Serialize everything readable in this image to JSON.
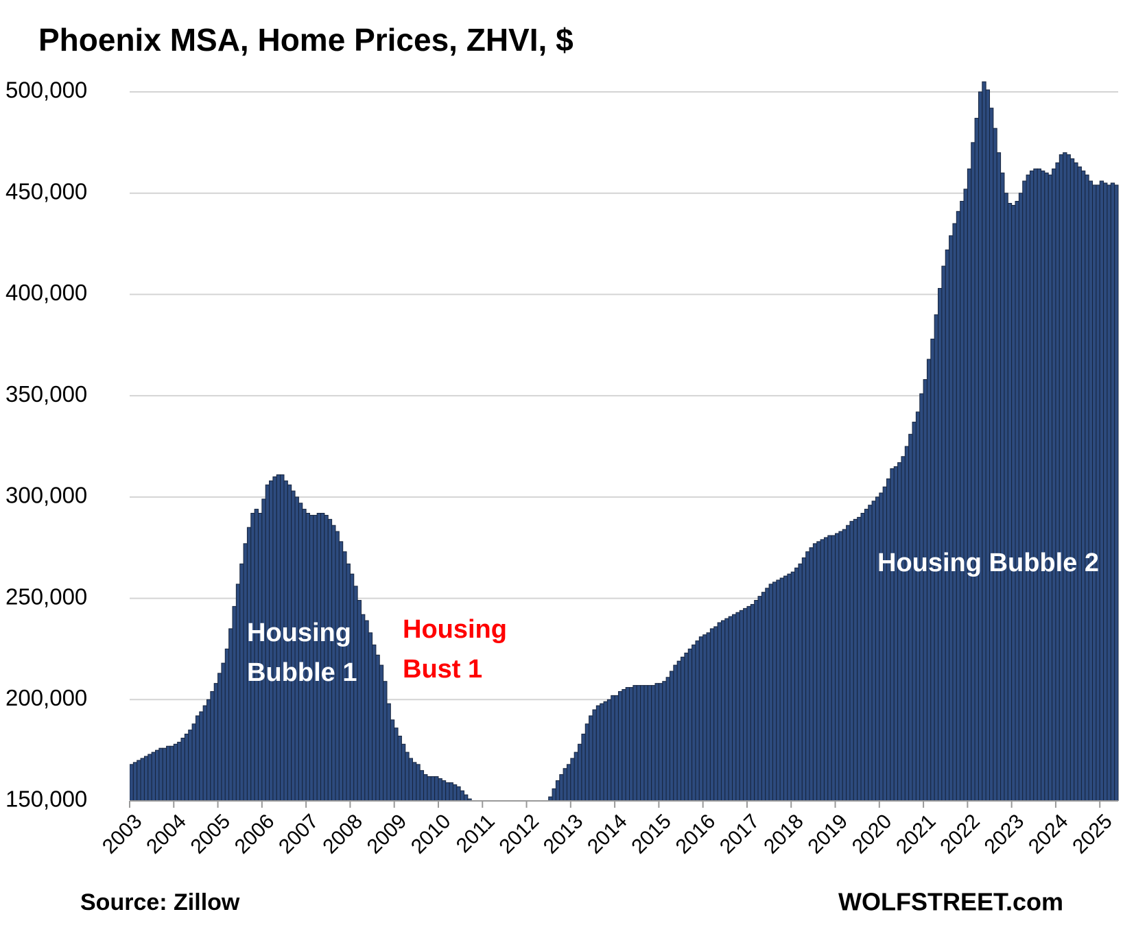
{
  "chart_data": {
    "type": "bar",
    "title": "Phoenix  MSA, Home Prices, ZHVI, $",
    "source": "Source: Zillow",
    "credit": "WOLFSTREET.com",
    "color": "#2d4b7e",
    "grid": true,
    "ylim": [
      150000,
      500000
    ],
    "yticks": [
      {
        "value": 150000,
        "label": "150,000"
      },
      {
        "value": 200000,
        "label": "200,000"
      },
      {
        "value": 250000,
        "label": "250,000"
      },
      {
        "value": 300000,
        "label": "300,000"
      },
      {
        "value": 350000,
        "label": "350,000"
      },
      {
        "value": 400000,
        "label": "400,000"
      },
      {
        "value": 450000,
        "label": "450,000"
      },
      {
        "value": 500000,
        "label": "500,000"
      }
    ],
    "annotations": [
      {
        "lines": [
          "Housing",
          "Bubble 1"
        ],
        "color": "#ffffff"
      },
      {
        "lines": [
          "Housing",
          "Bust 1"
        ],
        "color": "#ff0000"
      },
      {
        "lines": [
          "Housing Bubble 2"
        ],
        "color": "#ffffff"
      }
    ],
    "categories": [
      "2003",
      null,
      null,
      null,
      null,
      null,
      null,
      null,
      null,
      null,
      null,
      null,
      "2004",
      null,
      null,
      null,
      null,
      null,
      null,
      null,
      null,
      null,
      null,
      null,
      "2005",
      null,
      null,
      null,
      null,
      null,
      null,
      null,
      null,
      null,
      null,
      null,
      "2006",
      null,
      null,
      null,
      null,
      null,
      null,
      null,
      null,
      null,
      null,
      null,
      "2007",
      null,
      null,
      null,
      null,
      null,
      null,
      null,
      null,
      null,
      null,
      null,
      "2008",
      null,
      null,
      null,
      null,
      null,
      null,
      null,
      null,
      null,
      null,
      null,
      "2009",
      null,
      null,
      null,
      null,
      null,
      null,
      null,
      null,
      null,
      null,
      null,
      "2010",
      null,
      null,
      null,
      null,
      null,
      null,
      null,
      null,
      null,
      null,
      null,
      "2011",
      null,
      null,
      null,
      null,
      null,
      null,
      null,
      null,
      null,
      null,
      null,
      "2012",
      null,
      null,
      null,
      null,
      null,
      null,
      null,
      null,
      null,
      null,
      null,
      "2013",
      null,
      null,
      null,
      null,
      null,
      null,
      null,
      null,
      null,
      null,
      null,
      "2014",
      null,
      null,
      null,
      null,
      null,
      null,
      null,
      null,
      null,
      null,
      null,
      "2015",
      null,
      null,
      null,
      null,
      null,
      null,
      null,
      null,
      null,
      null,
      null,
      "2016",
      null,
      null,
      null,
      null,
      null,
      null,
      null,
      null,
      null,
      null,
      null,
      "2017",
      null,
      null,
      null,
      null,
      null,
      null,
      null,
      null,
      null,
      null,
      null,
      "2018",
      null,
      null,
      null,
      null,
      null,
      null,
      null,
      null,
      null,
      null,
      null,
      "2019",
      null,
      null,
      null,
      null,
      null,
      null,
      null,
      null,
      null,
      null,
      null,
      "2020",
      null,
      null,
      null,
      null,
      null,
      null,
      null,
      null,
      null,
      null,
      null,
      "2021",
      null,
      null,
      null,
      null,
      null,
      null,
      null,
      null,
      null,
      null,
      null,
      "2022",
      null,
      null,
      null,
      null,
      null,
      null,
      null,
      null,
      null,
      null,
      null,
      "2023",
      null,
      null,
      null,
      null,
      null,
      null,
      null,
      null,
      null,
      null,
      null,
      "2024",
      null,
      null,
      null,
      null,
      null,
      null,
      null,
      null,
      null,
      null,
      null,
      "2025",
      null,
      null,
      null,
      null
    ],
    "values": [
      168000,
      169000,
      170000,
      171000,
      172000,
      173000,
      174000,
      175000,
      176000,
      176000,
      177000,
      177000,
      178000,
      179000,
      181000,
      183000,
      185000,
      188000,
      192000,
      194000,
      197000,
      200000,
      204000,
      208000,
      213000,
      218000,
      225000,
      235000,
      246000,
      257000,
      267000,
      277000,
      285000,
      292000,
      294000,
      292000,
      299000,
      306000,
      308000,
      310000,
      311000,
      311000,
      308000,
      306000,
      303000,
      300000,
      297000,
      294000,
      292000,
      291000,
      291000,
      292000,
      292000,
      291000,
      289000,
      286000,
      283000,
      278000,
      273000,
      267000,
      262000,
      256000,
      249000,
      242000,
      239000,
      233000,
      227000,
      222000,
      217000,
      209000,
      198000,
      190000,
      186000,
      182000,
      178000,
      174000,
      171000,
      169000,
      168000,
      165000,
      163000,
      162000,
      162000,
      162000,
      161000,
      160000,
      159000,
      159000,
      158000,
      157000,
      155000,
      153000,
      151000,
      149000,
      147000,
      146000,
      145000,
      144000,
      143000,
      142000,
      141000,
      140000,
      140000,
      139000,
      139000,
      139000,
      139000,
      139000,
      140000,
      141000,
      142000,
      144000,
      146000,
      148000,
      152000,
      156000,
      160000,
      163000,
      166000,
      168000,
      171000,
      174000,
      178000,
      183000,
      188000,
      192000,
      195000,
      197000,
      198000,
      199000,
      200000,
      202000,
      202000,
      204000,
      205000,
      206000,
      206000,
      207000,
      207000,
      207000,
      207000,
      207000,
      207000,
      208000,
      208000,
      209000,
      211000,
      214000,
      217000,
      219000,
      221000,
      223000,
      225000,
      227000,
      229000,
      231000,
      232000,
      233000,
      235000,
      236000,
      238000,
      239000,
      240000,
      241000,
      242000,
      243000,
      244000,
      245000,
      246000,
      247000,
      249000,
      251000,
      253000,
      255000,
      257000,
      258000,
      259000,
      260000,
      261000,
      262000,
      263000,
      265000,
      267000,
      270000,
      273000,
      275000,
      277000,
      278000,
      279000,
      280000,
      281000,
      281000,
      282000,
      283000,
      284000,
      286000,
      288000,
      289000,
      290000,
      292000,
      294000,
      296000,
      298000,
      300000,
      302000,
      305000,
      309000,
      314000,
      315000,
      317000,
      320000,
      325000,
      331000,
      337000,
      342000,
      351000,
      358000,
      368000,
      378000,
      390000,
      403000,
      414000,
      422000,
      429000,
      435000,
      441000,
      446000,
      452000,
      462000,
      475000,
      487000,
      500000,
      505000,
      501000,
      492000,
      482000,
      470000,
      460000,
      450000,
      445000,
      444000,
      446000,
      450000,
      456000,
      459000,
      461000,
      462000,
      462000,
      461000,
      460000,
      459000,
      462000,
      465000,
      469000,
      470000,
      469000,
      467000,
      465000,
      463000,
      461000,
      459000,
      456000,
      454000,
      454000,
      456000,
      455000,
      454000,
      455000,
      454000
    ]
  }
}
